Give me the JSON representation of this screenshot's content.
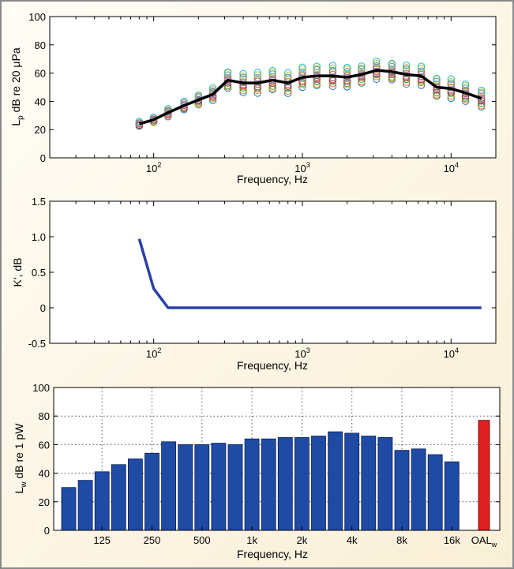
{
  "colors": {
    "border": "#8a8a8a",
    "panel_bg": "#ffffff",
    "mean_line": "#000000",
    "k_line": "#2a40a8",
    "bar": "#1f4ba5",
    "oal_bar": "#e02020",
    "band_markers": [
      "#1f77b4",
      "#ff7f0e",
      "#2ca02c",
      "#d62728",
      "#9467bd",
      "#8c564b",
      "#e377c2",
      "#7f7f7f",
      "#bcbd22",
      "#17becf"
    ]
  },
  "chart_data": [
    {
      "type": "scatter",
      "xscale": "log",
      "xlim": [
        20,
        20000
      ],
      "ylim": [
        0,
        100
      ],
      "yticks": [
        0,
        20,
        40,
        60,
        80,
        100
      ],
      "xticks": [
        100,
        1000,
        10000
      ],
      "xtick_labels": [
        {
          "base": "10",
          "exp": "2"
        },
        {
          "base": "10",
          "exp": "3"
        },
        {
          "base": "10",
          "exp": "4"
        }
      ],
      "xlabel": "Frequency, Hz",
      "ylabel": {
        "main": "L",
        "sub": "p",
        "rest": " dB re 20 μPa"
      },
      "frequencies": [
        80,
        100,
        125,
        160,
        200,
        250,
        315,
        400,
        500,
        630,
        800,
        1000,
        1250,
        1600,
        2000,
        2500,
        3150,
        4000,
        5000,
        6300,
        8000,
        10000,
        12500,
        16000
      ],
      "mean_series": [
        24,
        27,
        32,
        37,
        41,
        45,
        55,
        53,
        53,
        55,
        53,
        57,
        58,
        58,
        57,
        59,
        62,
        61,
        59,
        58,
        50,
        49,
        46,
        42
      ],
      "measurement_spread": [
        1.5,
        2.0,
        2.5,
        3.0,
        3.5,
        4.0,
        6.0,
        6.5,
        7.0,
        7.0,
        7.0,
        7.0,
        7.0,
        7.0,
        7.0,
        6.0,
        6.0,
        6.0,
        6.5,
        6.5,
        6.5,
        6.5,
        6.0,
        6.0
      ],
      "markers_per_frequency": 10,
      "grid": false
    },
    {
      "type": "line",
      "xscale": "log",
      "xlim": [
        20,
        20000
      ],
      "ylim": [
        -0.5,
        1.5
      ],
      "yticks": [
        -0.5,
        0,
        0.5,
        1.0,
        1.5
      ],
      "ytick_labels": [
        "-0.5",
        "0",
        "0.5",
        "1.0",
        "1.5"
      ],
      "xticks": [
        100,
        1000,
        10000
      ],
      "xtick_labels": [
        {
          "base": "10",
          "exp": "2"
        },
        {
          "base": "10",
          "exp": "3"
        },
        {
          "base": "10",
          "exp": "4"
        }
      ],
      "xlabel": "Frequency, Hz",
      "ylabel": "K', dB",
      "x": [
        80,
        100,
        125,
        160,
        16000
      ],
      "y": [
        0.97,
        0.27,
        0,
        0,
        0
      ],
      "grid": false
    },
    {
      "type": "bar",
      "ylim": [
        0,
        100
      ],
      "yticks": [
        0,
        20,
        40,
        60,
        80,
        100
      ],
      "xlabel": "Frequency, Hz",
      "ylabel": {
        "main": "L",
        "sub": "w",
        "rest": " dB re 1 pW"
      },
      "values": [
        30,
        35,
        41,
        46,
        50,
        54,
        62,
        60,
        60,
        61,
        60,
        64,
        64,
        65,
        65,
        66,
        69,
        68,
        66,
        65,
        56,
        57,
        53,
        48
      ],
      "tick_labels": [
        "125",
        "250",
        "500",
        "1k",
        "2k",
        "4k",
        "8k",
        "16k"
      ],
      "tick_band_index": [
        2,
        5,
        8,
        11,
        14,
        17,
        20,
        23
      ],
      "oal": {
        "label_main": "OAL",
        "label_sub": "w",
        "value": 77
      },
      "grid": true
    }
  ]
}
